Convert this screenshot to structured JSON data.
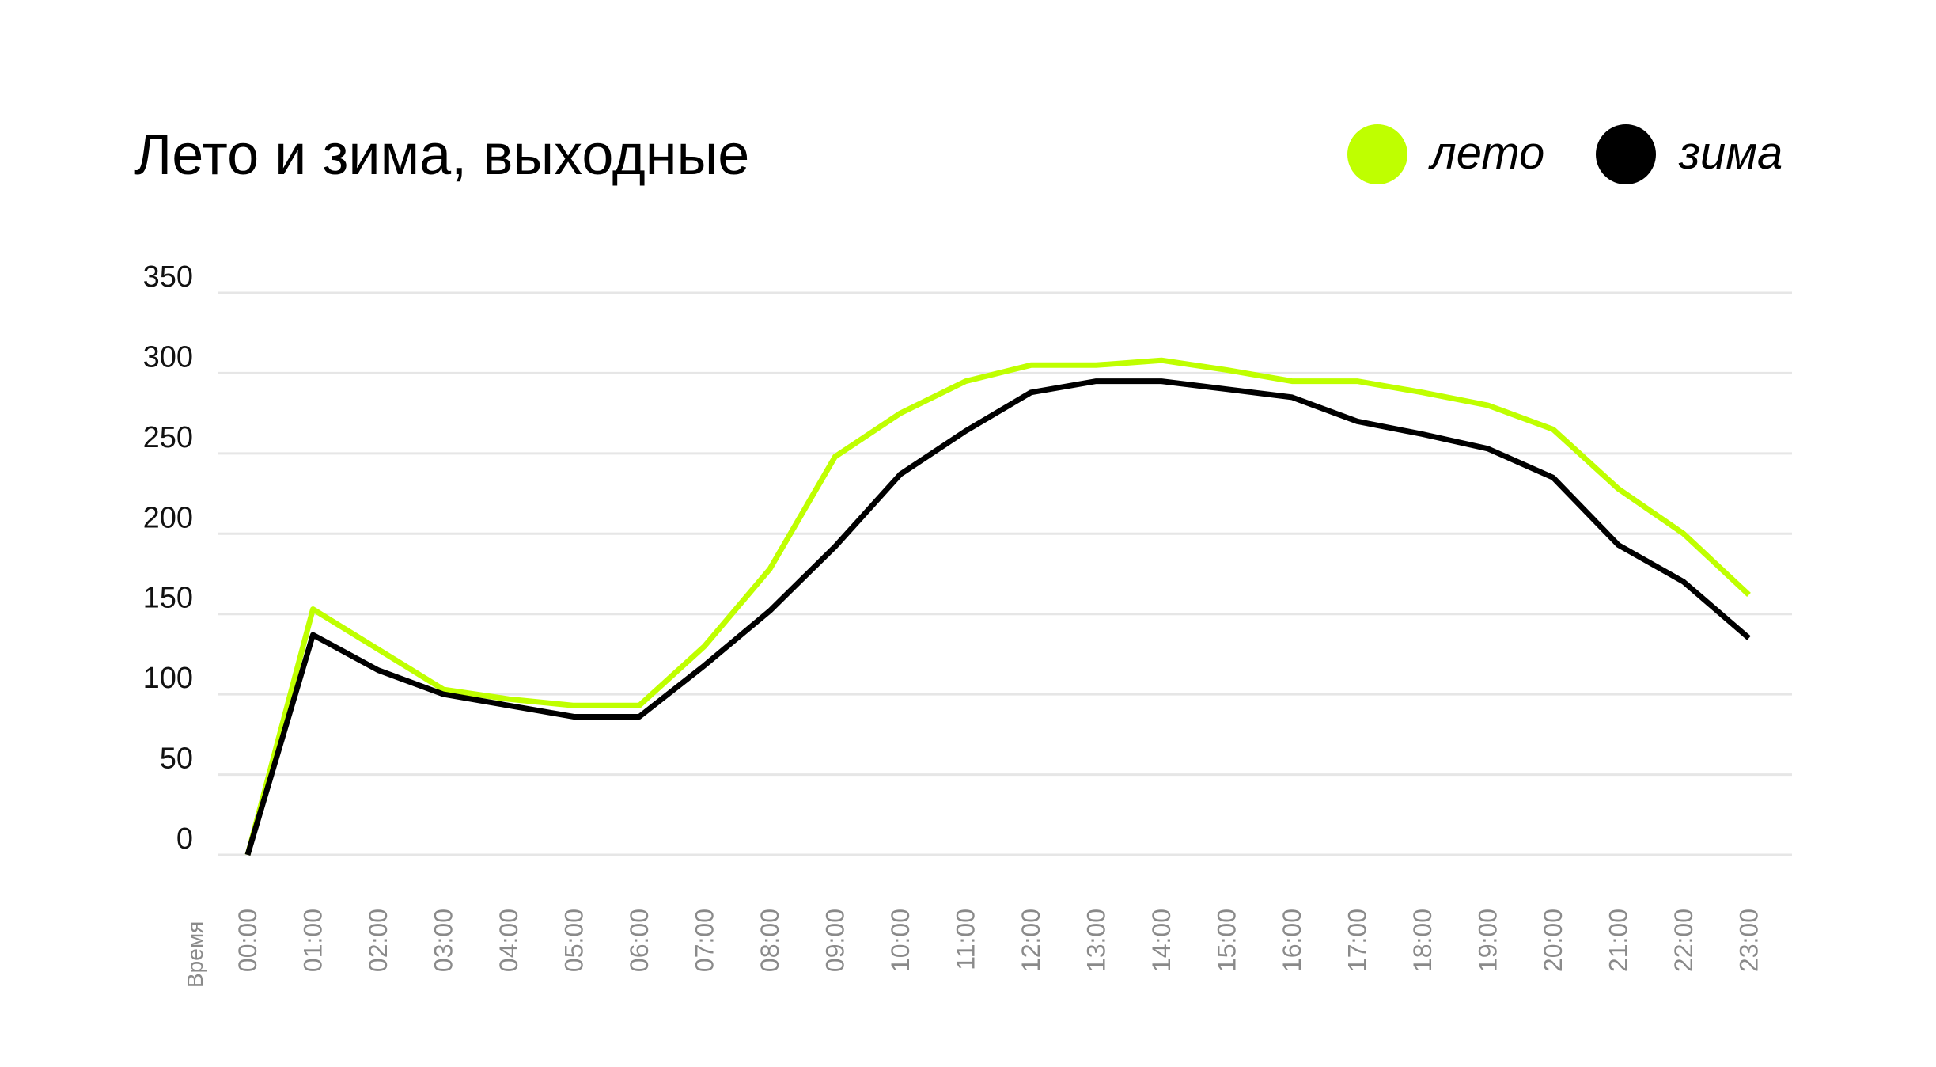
{
  "chart_data": {
    "type": "line",
    "title": "Лето и зима, выходные",
    "xlabel": "Время",
    "ylabel": "",
    "ylim": [
      0,
      350
    ],
    "yticks": [
      "0",
      "50",
      "100",
      "150",
      "200",
      "250",
      "300",
      "350"
    ],
    "categories": [
      "00:00",
      "01:00",
      "02:00",
      "03:00",
      "04:00",
      "05:00",
      "06:00",
      "07:00",
      "08:00",
      "09:00",
      "10:00",
      "11:00",
      "12:00",
      "13:00",
      "14:00",
      "15:00",
      "16:00",
      "17:00",
      "18:00",
      "19:00",
      "20:00",
      "21:00",
      "22:00",
      "23:00"
    ],
    "grid": true,
    "legend_position": "top-right",
    "series": [
      {
        "name": "лето",
        "color": "#bfff00",
        "values": [
          0,
          153,
          128,
          103,
          97,
          93,
          93,
          130,
          178,
          248,
          275,
          295,
          305,
          305,
          308,
          302,
          295,
          295,
          288,
          280,
          265,
          228,
          200,
          162
        ]
      },
      {
        "name": "зима",
        "color": "#000000",
        "values": [
          0,
          137,
          115,
          100,
          93,
          86,
          86,
          118,
          152,
          192,
          237,
          264,
          288,
          295,
          295,
          290,
          285,
          270,
          262,
          253,
          235,
          193,
          170,
          135
        ]
      }
    ]
  }
}
